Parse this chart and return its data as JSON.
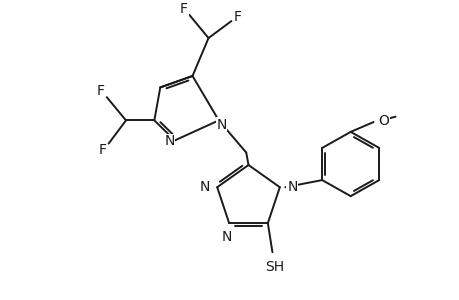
{
  "bg_color": "#ffffff",
  "line_color": "#1a1a1a",
  "line_width": 1.4,
  "font_size": 10,
  "fig_width": 4.6,
  "fig_height": 3.0,
  "dpi": 100,
  "xlim": [
    0,
    10
  ],
  "ylim": [
    0,
    6.52
  ]
}
